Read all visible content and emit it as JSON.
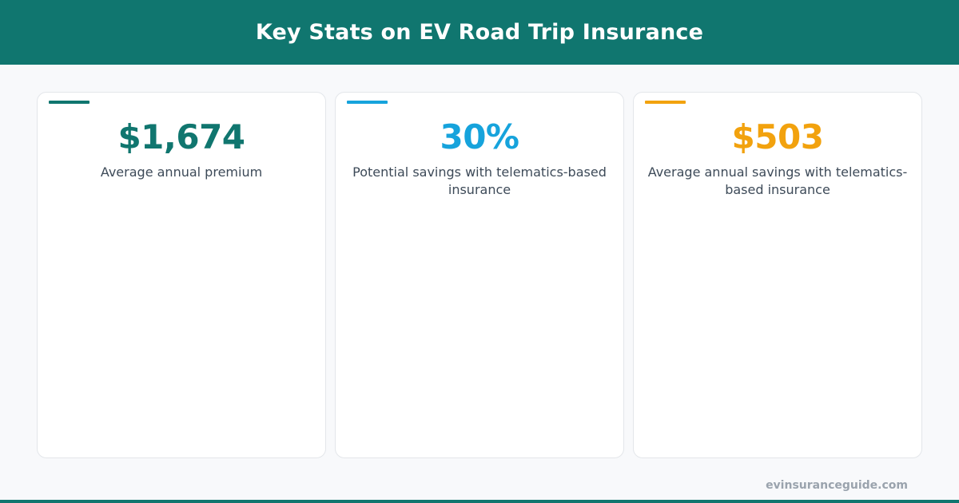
{
  "header": {
    "title": "Key Stats on EV Road Trip Insurance"
  },
  "colors": {
    "header_bg": "#10766f",
    "card_1_accent": "#10766f",
    "card_2_accent": "#16a3dc",
    "card_3_accent": "#f2a20e"
  },
  "stats": [
    {
      "value": "$1,674",
      "label": "Average annual premium"
    },
    {
      "value": "30%",
      "label": "Potential savings with telematics-based insurance"
    },
    {
      "value": "$503",
      "label": "Average annual savings with telematics-based insurance"
    }
  ],
  "footer": {
    "brand": "evinsuranceguide.com"
  }
}
